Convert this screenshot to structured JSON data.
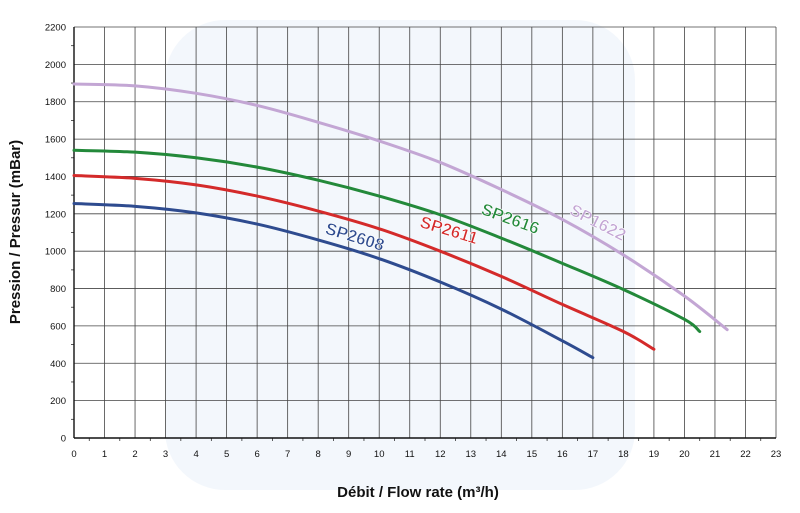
{
  "chart_data": {
    "type": "line",
    "xlabel": "Débit / Flow rate (m³/h)",
    "ylabel": "Pression / Pressur (mBar)",
    "xlim": [
      0,
      23
    ],
    "ylim": [
      0,
      2200
    ],
    "x_ticks": [
      "0",
      "1",
      "2",
      "3",
      "4",
      "5",
      "6",
      "7",
      "8",
      "9",
      "10",
      "11",
      "12",
      "13",
      "14",
      "15",
      "16",
      "17",
      "18",
      "19",
      "20",
      "21",
      "22",
      "23"
    ],
    "y_ticks": [
      "0",
      "200",
      "400",
      "600",
      "800",
      "1000",
      "1200",
      "1400",
      "1600",
      "1800",
      "2000",
      "2200"
    ],
    "grid": true,
    "series": [
      {
        "name": "SP2608",
        "color": "#2e4b8f",
        "x": [
          0,
          2,
          4,
          6,
          8,
          10,
          12,
          14,
          16,
          17
        ],
        "y": [
          1255,
          1240,
          1205,
          1145,
          1060,
          960,
          835,
          690,
          520,
          430
        ]
      },
      {
        "name": "SP2611",
        "color": "#d42a2a",
        "x": [
          0,
          2,
          4,
          6,
          8,
          10,
          12,
          14,
          16,
          18,
          19
        ],
        "y": [
          1405,
          1390,
          1355,
          1295,
          1215,
          1120,
          1000,
          865,
          715,
          570,
          475
        ]
      },
      {
        "name": "SP2616",
        "color": "#23893a",
        "x": [
          0,
          2,
          4,
          6,
          8,
          10,
          12,
          14,
          16,
          18,
          20,
          20.5
        ],
        "y": [
          1540,
          1530,
          1500,
          1450,
          1380,
          1295,
          1195,
          1070,
          935,
          795,
          635,
          570
        ]
      },
      {
        "name": "SP1622",
        "color": "#c3a6d4",
        "x": [
          0,
          2,
          4,
          6,
          8,
          10,
          12,
          14,
          16,
          18,
          20,
          21.4
        ],
        "y": [
          1895,
          1885,
          1845,
          1780,
          1690,
          1590,
          1475,
          1330,
          1170,
          980,
          760,
          580
        ]
      }
    ]
  }
}
